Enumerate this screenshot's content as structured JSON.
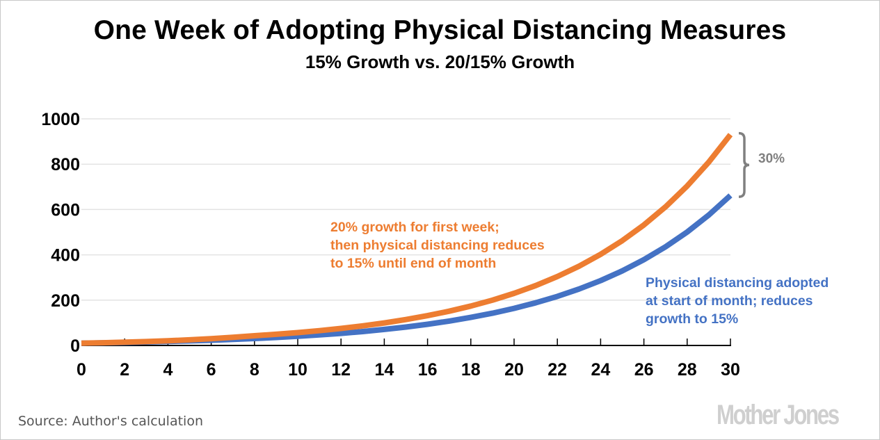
{
  "chart_data": {
    "type": "line",
    "title": "One Week of Adopting Physical Distancing Measures",
    "subtitle": "15% Growth vs. 20/15% Growth",
    "xlabel": "",
    "ylabel": "",
    "xlim": [
      0,
      30
    ],
    "ylim": [
      0,
      1000
    ],
    "xticks": [
      0,
      2,
      4,
      6,
      8,
      10,
      12,
      14,
      16,
      18,
      20,
      22,
      24,
      26,
      28,
      30
    ],
    "yticks": [
      0,
      200,
      400,
      600,
      800,
      1000
    ],
    "grid": "horizontal",
    "x": [
      0,
      1,
      2,
      3,
      4,
      5,
      6,
      7,
      8,
      9,
      10,
      11,
      12,
      13,
      14,
      15,
      16,
      17,
      18,
      19,
      20,
      21,
      22,
      23,
      24,
      25,
      26,
      27,
      28,
      29,
      30
    ],
    "series": [
      {
        "name": "20% growth for first week; then physical distancing reduces to 15% until end of month",
        "color": "#ed7d31",
        "values": [
          10,
          12,
          14.4,
          17.3,
          20.7,
          24.9,
          29.9,
          35.8,
          43,
          49.4,
          56.9,
          65.4,
          75.2,
          86.5,
          99.4,
          114.4,
          131.5,
          151.2,
          173.9,
          200,
          230,
          264.5,
          304.2,
          349.8,
          402.3,
          462.6,
          532,
          611.8,
          703.6,
          809.1,
          930.5
        ]
      },
      {
        "name": "Physical distancing adopted at start of month; reduces growth to 15%",
        "color": "#4472c4",
        "values": [
          10,
          11.5,
          13.2,
          15.2,
          17.5,
          20.1,
          23.1,
          26.6,
          30.6,
          35.2,
          40.5,
          46.5,
          53.5,
          61.5,
          70.8,
          81.4,
          93.6,
          107.6,
          123.8,
          142.3,
          163.7,
          188.2,
          216.5,
          249,
          286.3,
          329.2,
          378.6,
          435.4,
          500.7,
          575.8,
          662.1
        ]
      }
    ],
    "annotations": [
      {
        "text_lines": [
          "20% growth for first week;",
          "then physical distancing reduces",
          "to 15% until end of month"
        ],
        "color": "#ed7d31"
      },
      {
        "text_lines": [
          "Physical distancing adopted",
          "at start of month; reduces",
          "growth to 15%"
        ],
        "color": "#4472c4"
      },
      {
        "text": "30%",
        "color": "#808080",
        "type": "brace",
        "spans": "gap between series at x=30"
      }
    ],
    "source": "Source: Author's calculation",
    "brand": "Mother Jones"
  }
}
